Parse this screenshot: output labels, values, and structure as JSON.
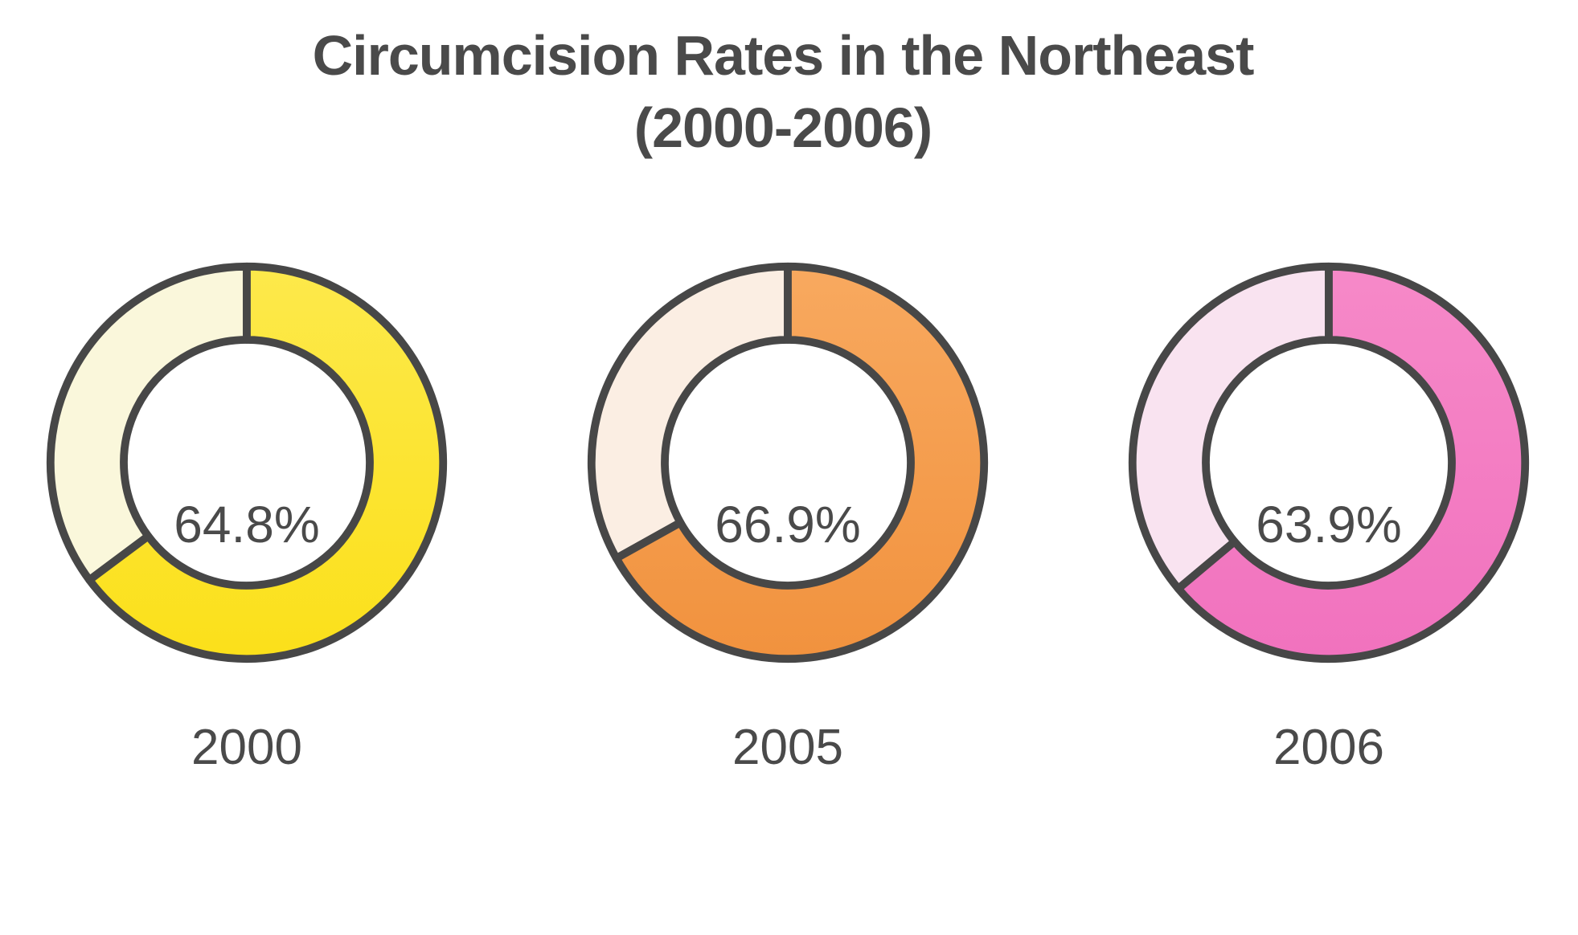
{
  "title": {
    "line1": "Circumcision Rates in the Northeast",
    "line2": "(2000-2006)"
  },
  "style": {
    "stroke_color": "#474747",
    "text_color": "#4A4A4A",
    "background": "#FFFFFF"
  },
  "chart_data": {
    "type": "pie",
    "variant": "donut",
    "title": "Circumcision Rates in the Northeast (2000-2006)",
    "start_angle": "top",
    "direction": "clockwise",
    "legend": "none",
    "categories": [
      "2000",
      "2005",
      "2006"
    ],
    "values": [
      64.8,
      66.9,
      63.9
    ],
    "charts": [
      {
        "year": "2000",
        "rate": 64.8,
        "rate_label": "64.8%",
        "remainder": 35.2,
        "colors": {
          "main_top": "#FDE94B",
          "main_bottom": "#FBE01A",
          "remainder": "#FAF7DB"
        }
      },
      {
        "year": "2005",
        "rate": 66.9,
        "rate_label": "66.9%",
        "remainder": 33.1,
        "colors": {
          "main_top": "#F8A95F",
          "main_bottom": "#F1923E",
          "remainder": "#FBEEE3"
        }
      },
      {
        "year": "2006",
        "rate": 63.9,
        "rate_label": "63.9%",
        "remainder": 36.1,
        "colors": {
          "main_top": "#F689C8",
          "main_bottom": "#F172BE",
          "remainder": "#F9E3F0"
        }
      }
    ]
  }
}
